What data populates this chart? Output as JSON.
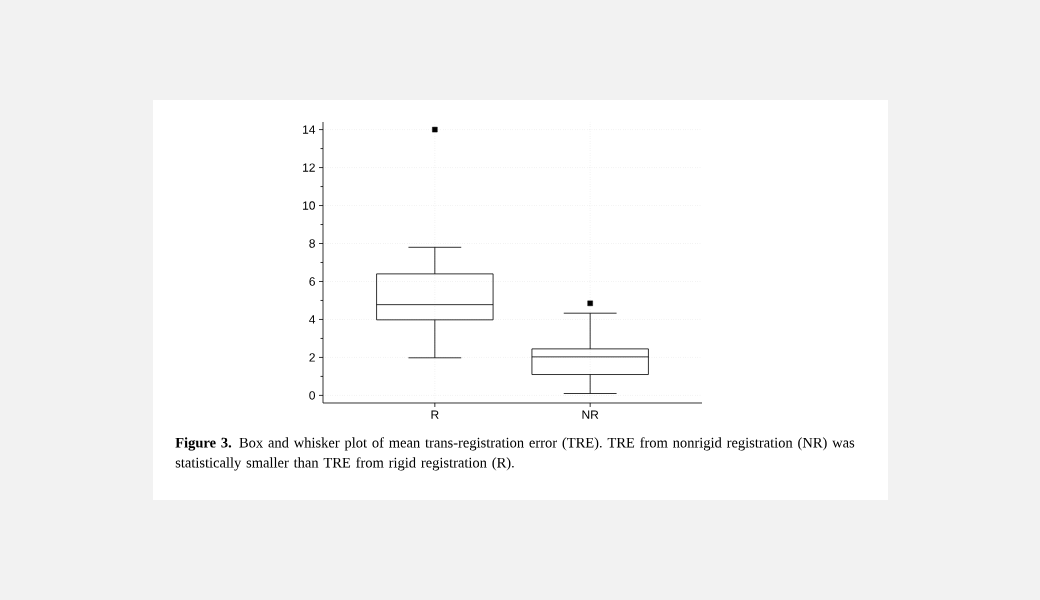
{
  "chart_data": {
    "type": "box",
    "categories": [
      "R",
      "NR"
    ],
    "boxes": [
      {
        "low": 1.98,
        "q1": 3.98,
        "median": 4.78,
        "q3": 6.4,
        "high": 7.8,
        "outliers": [
          14
        ]
      },
      {
        "low": 0.1,
        "q1": 1.1,
        "median": 2.03,
        "q3": 2.45,
        "high": 4.33,
        "outliers": [
          4.85
        ]
      }
    ],
    "ylim": [
      -0.4,
      14.4
    ],
    "yticks": [
      0,
      2,
      4,
      6,
      8,
      10,
      12,
      14
    ],
    "grid": true,
    "annotations": [
      "**Figure 3.** Box and whisker plot of mean trans-registration error (TRE). TRE from nonrigid registration (NR) was statistically smaller than TRE from rigid registration (R)."
    ]
  }
}
